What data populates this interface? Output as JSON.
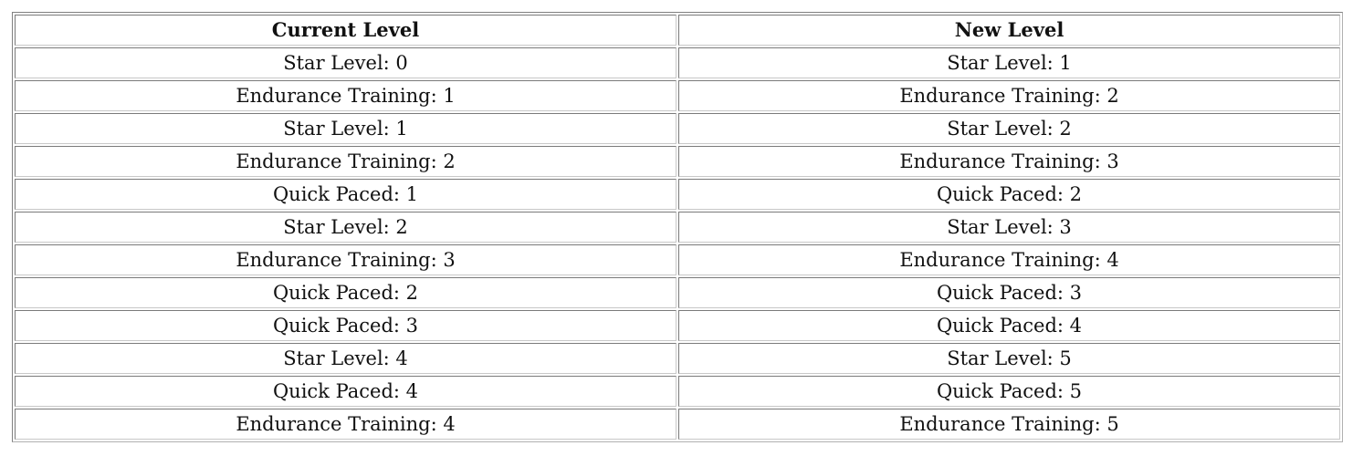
{
  "table": {
    "headers": [
      "Current Level",
      "New Level"
    ],
    "rows": [
      [
        "Star Level: 0",
        "Star Level: 1"
      ],
      [
        "Endurance Training: 1",
        "Endurance Training: 2"
      ],
      [
        "Star Level: 1",
        "Star Level: 2"
      ],
      [
        "Endurance Training: 2",
        "Endurance Training: 3"
      ],
      [
        "Quick Paced: 1",
        "Quick Paced: 2"
      ],
      [
        "Star Level: 2",
        "Star Level: 3"
      ],
      [
        "Endurance Training: 3",
        "Endurance Training: 4"
      ],
      [
        "Quick Paced: 2",
        "Quick Paced: 3"
      ],
      [
        "Quick Paced: 3",
        "Quick Paced: 4"
      ],
      [
        "Star Level: 4",
        "Star Level: 5"
      ],
      [
        "Quick Paced: 4",
        "Quick Paced: 5"
      ],
      [
        "Endurance Training: 4",
        "Endurance Training: 5"
      ]
    ]
  }
}
